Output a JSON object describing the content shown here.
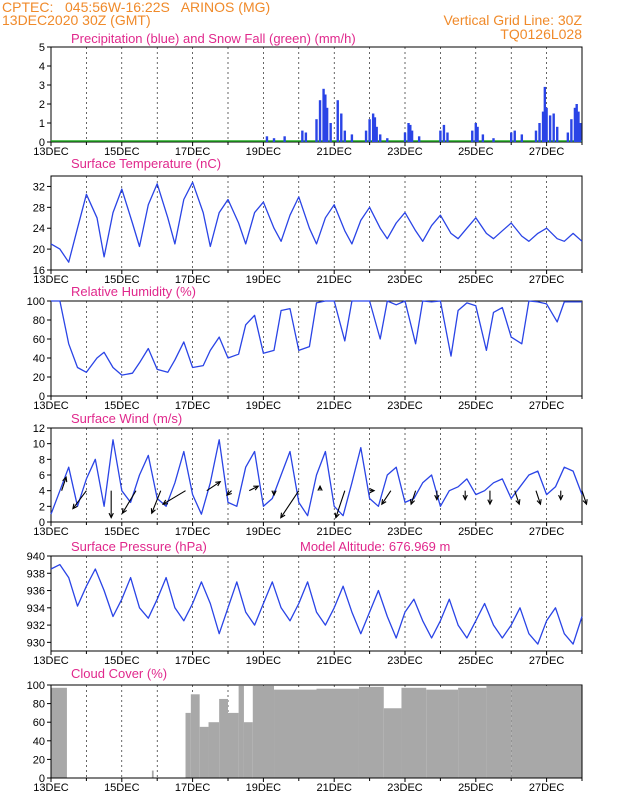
{
  "header": {
    "line1_left": "CPTEC:   045:56W-16:22S   ARINOS (MG)",
    "line2_left": "13DEC2020 30Z (GMT)",
    "line1_right": "Vertical Grid Line: 30Z",
    "line2_right": "TQ0126L028"
  },
  "colors": {
    "header": "#f08a2a",
    "panel_title": "#e0288c",
    "line": "#2a44e6",
    "cloud": "#a8a8a8",
    "snow": "#22aa22",
    "arrow": "#000000"
  },
  "x_ticks": [
    "13DEC",
    "15DEC",
    "17DEC",
    "19DEC",
    "21DEC",
    "23DEC",
    "25DEC",
    "27DEC"
  ],
  "chart_data": [
    {
      "id": "precip",
      "type": "bar",
      "title": "Precipitation (blue) and Snow Fall (green) (mm/h)",
      "ylim": [
        0,
        5
      ],
      "yticks": [
        "0",
        "1",
        "2",
        "3",
        "4",
        "5"
      ],
      "x_start_day": 13,
      "x_end_day": 28,
      "series": [
        {
          "name": "Precipitation",
          "color": "#2a44e6",
          "points": [
            [
              19.1,
              0.3
            ],
            [
              19.3,
              0.2
            ],
            [
              19.6,
              0.3
            ],
            [
              20.1,
              0.6
            ],
            [
              20.2,
              0.5
            ],
            [
              20.5,
              1.2
            ],
            [
              20.6,
              2.2
            ],
            [
              20.7,
              2.8
            ],
            [
              20.75,
              2.5
            ],
            [
              20.8,
              1.8
            ],
            [
              20.9,
              1.0
            ],
            [
              21.1,
              2.2
            ],
            [
              21.2,
              1.5
            ],
            [
              21.3,
              0.6
            ],
            [
              21.5,
              0.4
            ],
            [
              21.9,
              0.6
            ],
            [
              22.0,
              1.2
            ],
            [
              22.1,
              1.5
            ],
            [
              22.15,
              1.3
            ],
            [
              22.2,
              0.8
            ],
            [
              22.3,
              0.4
            ],
            [
              22.5,
              0.2
            ],
            [
              23.0,
              0.5
            ],
            [
              23.1,
              1.0
            ],
            [
              23.15,
              0.9
            ],
            [
              23.2,
              0.6
            ],
            [
              23.4,
              0.3
            ],
            [
              24.0,
              0.6
            ],
            [
              24.1,
              0.9
            ],
            [
              24.2,
              0.5
            ],
            [
              24.9,
              0.6
            ],
            [
              25.0,
              1.0
            ],
            [
              25.05,
              0.8
            ],
            [
              25.2,
              0.4
            ],
            [
              25.5,
              0.2
            ],
            [
              26.0,
              0.5
            ],
            [
              26.1,
              0.6
            ],
            [
              26.3,
              0.4
            ],
            [
              26.7,
              0.6
            ],
            [
              26.8,
              1.0
            ],
            [
              26.9,
              1.6
            ],
            [
              26.95,
              2.9
            ],
            [
              27.0,
              1.8
            ],
            [
              27.1,
              1.4
            ],
            [
              27.2,
              1.5
            ],
            [
              27.3,
              0.8
            ],
            [
              27.6,
              0.5
            ],
            [
              27.7,
              1.2
            ],
            [
              27.8,
              1.8
            ],
            [
              27.85,
              2.0
            ],
            [
              27.9,
              1.6
            ],
            [
              27.95,
              1.0
            ]
          ]
        },
        {
          "name": "Snow Fall",
          "color": "#22aa22",
          "points": []
        }
      ]
    },
    {
      "id": "temp",
      "type": "line",
      "title": "Surface Temperature (nC)",
      "ylim": [
        16,
        34
      ],
      "yticks": [
        "16",
        "20",
        "24",
        "28",
        "32"
      ],
      "x": [
        13.0,
        13.25,
        13.5,
        13.75,
        14.0,
        14.3,
        14.5,
        14.75,
        15.0,
        15.3,
        15.5,
        15.75,
        16.0,
        16.3,
        16.5,
        16.75,
        17.0,
        17.3,
        17.5,
        17.75,
        18.0,
        18.3,
        18.5,
        18.75,
        19.0,
        19.3,
        19.5,
        19.75,
        20.0,
        20.3,
        20.5,
        20.75,
        21.0,
        21.3,
        21.5,
        21.75,
        22.0,
        22.3,
        22.5,
        22.75,
        23.0,
        23.3,
        23.5,
        23.75,
        24.0,
        24.3,
        24.5,
        24.75,
        25.0,
        25.3,
        25.5,
        25.75,
        26.0,
        26.3,
        26.5,
        26.75,
        27.0,
        27.3,
        27.5,
        27.75,
        28.0
      ],
      "values": [
        21.0,
        20.0,
        17.5,
        24.0,
        30.5,
        26.0,
        18.5,
        27.0,
        31.5,
        25.0,
        20.5,
        28.5,
        32.5,
        26.0,
        21.0,
        29.5,
        32.8,
        27.0,
        20.5,
        27.0,
        29.5,
        25.0,
        21.0,
        27.0,
        29.0,
        24.0,
        21.5,
        26.5,
        30.0,
        24.0,
        21.0,
        26.0,
        28.5,
        23.5,
        21.0,
        25.5,
        28.0,
        24.0,
        22.0,
        25.0,
        27.0,
        23.5,
        21.5,
        24.5,
        26.5,
        23.0,
        22.0,
        24.0,
        26.0,
        23.0,
        22.0,
        23.5,
        25.0,
        22.5,
        21.5,
        23.0,
        24.0,
        22.0,
        21.5,
        23.0,
        21.5
      ]
    },
    {
      "id": "rh",
      "type": "line",
      "title": "Relative Humidity (%)",
      "ylim": [
        0,
        100
      ],
      "yticks": [
        "0",
        "20",
        "40",
        "60",
        "80",
        "100"
      ],
      "x": [
        13.0,
        13.25,
        13.5,
        13.75,
        14.0,
        14.3,
        14.5,
        14.75,
        15.0,
        15.3,
        15.5,
        15.75,
        16.0,
        16.3,
        16.5,
        16.75,
        17.0,
        17.3,
        17.5,
        17.75,
        18.0,
        18.3,
        18.5,
        18.75,
        19.0,
        19.3,
        19.5,
        19.75,
        20.0,
        20.3,
        20.5,
        20.75,
        21.0,
        21.3,
        21.5,
        21.75,
        22.0,
        22.3,
        22.5,
        22.75,
        23.0,
        23.3,
        23.5,
        23.75,
        24.0,
        24.3,
        24.5,
        24.75,
        25.0,
        25.3,
        25.5,
        25.75,
        26.0,
        26.3,
        26.5,
        26.75,
        27.0,
        27.3,
        27.5,
        27.75,
        28.0
      ],
      "values": [
        100,
        100,
        55,
        30,
        25,
        40,
        46,
        30,
        22,
        24,
        35,
        50,
        28,
        25,
        38,
        57,
        30,
        32,
        48,
        62,
        40,
        44,
        75,
        85,
        45,
        48,
        90,
        92,
        48,
        52,
        98,
        100,
        100,
        58,
        100,
        100,
        100,
        60,
        100,
        96,
        100,
        55,
        100,
        99,
        100,
        42,
        90,
        98,
        95,
        48,
        88,
        93,
        62,
        55,
        100,
        99,
        97,
        78,
        99,
        99,
        99
      ]
    },
    {
      "id": "wind",
      "type": "line",
      "title": "Surface Wind (m/s)",
      "ylim": [
        0,
        12
      ],
      "yticks": [
        "0",
        "2",
        "4",
        "6",
        "8",
        "10",
        "12"
      ],
      "x": [
        13.0,
        13.25,
        13.5,
        13.75,
        14.0,
        14.25,
        14.5,
        14.75,
        15.0,
        15.25,
        15.5,
        15.75,
        16.0,
        16.25,
        16.5,
        16.75,
        17.0,
        17.25,
        17.5,
        17.75,
        18.0,
        18.25,
        18.5,
        18.75,
        19.0,
        19.25,
        19.5,
        19.75,
        20.0,
        20.25,
        20.5,
        20.75,
        21.0,
        21.25,
        21.5,
        21.75,
        22.0,
        22.25,
        22.5,
        22.75,
        23.0,
        23.25,
        23.5,
        23.75,
        24.0,
        24.25,
        24.5,
        24.75,
        25.0,
        25.25,
        25.5,
        25.75,
        26.0,
        26.25,
        26.5,
        26.75,
        27.0,
        27.25,
        27.5,
        27.75,
        28.0
      ],
      "values": [
        1.0,
        4.0,
        7.0,
        2.0,
        5.5,
        8.0,
        2.0,
        10.5,
        4.0,
        2.5,
        6.0,
        8.5,
        3.0,
        2.0,
        5.0,
        9.0,
        3.5,
        1.0,
        5.0,
        10.5,
        2.5,
        2.0,
        7.0,
        9.0,
        2.0,
        3.0,
        6.0,
        9.0,
        2.5,
        0.8,
        6.0,
        9.0,
        2.0,
        0.8,
        5.0,
        9.5,
        3.0,
        2.0,
        6.0,
        7.0,
        2.5,
        3.0,
        5.0,
        6.0,
        2.0,
        4.0,
        4.5,
        5.5,
        3.5,
        4.0,
        5.0,
        5.5,
        3.0,
        4.5,
        6.0,
        6.5,
        3.5,
        4.5,
        7.0,
        6.5,
        3.5
      ],
      "arrows": [
        [
          13.3,
          1,
          3
        ],
        [
          14.0,
          -3,
          -4
        ],
        [
          14.7,
          0,
          -6
        ],
        [
          15.4,
          -3,
          -5
        ],
        [
          16.1,
          -2,
          -5
        ],
        [
          16.8,
          -5,
          -3
        ],
        [
          17.4,
          3,
          2
        ],
        [
          18.1,
          -1,
          -1
        ],
        [
          18.6,
          2,
          1
        ],
        [
          19.3,
          0,
          -1
        ],
        [
          20.0,
          -4,
          -6
        ],
        [
          20.6,
          0,
          1
        ],
        [
          21.3,
          -2,
          -6
        ],
        [
          22.0,
          1,
          0
        ],
        [
          22.6,
          -2,
          -3
        ],
        [
          23.3,
          -1,
          -3
        ],
        [
          23.9,
          0,
          -2
        ],
        [
          24.7,
          0,
          -2
        ],
        [
          25.4,
          0,
          -3
        ],
        [
          26.1,
          1,
          -3
        ],
        [
          26.7,
          1,
          -3
        ],
        [
          27.4,
          0,
          -2
        ],
        [
          28.0,
          1,
          -3
        ]
      ]
    },
    {
      "id": "pres",
      "type": "line",
      "title": "Surface Pressure (hPa)",
      "subtitle": "Model Altitude: 676.969  m",
      "ylim": [
        929,
        940
      ],
      "yticks": [
        "930",
        "932",
        "934",
        "936",
        "938",
        "940"
      ],
      "x": [
        13.0,
        13.25,
        13.5,
        13.75,
        14.0,
        14.25,
        14.5,
        14.75,
        15.0,
        15.25,
        15.5,
        15.75,
        16.0,
        16.25,
        16.5,
        16.75,
        17.0,
        17.25,
        17.5,
        17.75,
        18.0,
        18.25,
        18.5,
        18.75,
        19.0,
        19.25,
        19.5,
        19.75,
        20.0,
        20.25,
        20.5,
        20.75,
        21.0,
        21.25,
        21.5,
        21.75,
        22.0,
        22.25,
        22.5,
        22.75,
        23.0,
        23.25,
        23.5,
        23.75,
        24.0,
        24.25,
        24.5,
        24.75,
        25.0,
        25.25,
        25.5,
        25.75,
        26.0,
        26.25,
        26.5,
        26.75,
        27.0,
        27.25,
        27.5,
        27.75,
        28.0
      ],
      "values": [
        938.5,
        939.0,
        937.5,
        934.2,
        936.5,
        938.5,
        936.0,
        933.0,
        935.0,
        937.5,
        934.0,
        932.8,
        935.0,
        937.5,
        934.0,
        932.5,
        934.5,
        937.0,
        934.5,
        931.0,
        934.0,
        937.0,
        933.5,
        932.0,
        934.5,
        937.0,
        934.0,
        932.5,
        934.5,
        937.0,
        933.5,
        932.0,
        934.0,
        936.5,
        933.5,
        931.0,
        933.5,
        936.0,
        933.0,
        930.5,
        933.5,
        935.0,
        932.5,
        930.5,
        932.5,
        935.0,
        932.0,
        930.5,
        932.5,
        934.5,
        932.0,
        930.5,
        932.0,
        934.0,
        931.0,
        929.8,
        932.5,
        934.0,
        931.0,
        929.8,
        933.0
      ]
    },
    {
      "id": "cloud",
      "type": "area",
      "title": "Cloud Cover (%)",
      "ylim": [
        0,
        100
      ],
      "yticks": [
        "0",
        "20",
        "40",
        "60",
        "80",
        "100"
      ],
      "segments": [
        {
          "from": 13.0,
          "to": 13.45,
          "value": 97
        },
        {
          "from": 15.85,
          "to": 15.9,
          "value": 8
        },
        {
          "from": 16.8,
          "to": 16.95,
          "value": 70
        },
        {
          "from": 16.95,
          "to": 17.2,
          "value": 90
        },
        {
          "from": 17.2,
          "to": 17.45,
          "value": 55
        },
        {
          "from": 17.45,
          "to": 17.75,
          "value": 60
        },
        {
          "from": 17.75,
          "to": 18.0,
          "value": 85
        },
        {
          "from": 18.0,
          "to": 18.3,
          "value": 70
        },
        {
          "from": 18.3,
          "to": 18.45,
          "value": 99
        },
        {
          "from": 18.45,
          "to": 18.7,
          "value": 60
        },
        {
          "from": 18.7,
          "to": 19.3,
          "value": 99
        },
        {
          "from": 19.3,
          "to": 20.5,
          "value": 95
        },
        {
          "from": 20.5,
          "to": 21.7,
          "value": 96
        },
        {
          "from": 21.7,
          "to": 22.4,
          "value": 98
        },
        {
          "from": 22.4,
          "to": 22.9,
          "value": 75
        },
        {
          "from": 22.9,
          "to": 23.6,
          "value": 97
        },
        {
          "from": 23.6,
          "to": 24.5,
          "value": 95
        },
        {
          "from": 24.5,
          "to": 25.3,
          "value": 97
        },
        {
          "from": 25.3,
          "to": 26.0,
          "value": 99
        },
        {
          "from": 26.0,
          "to": 28.0,
          "value": 99
        }
      ]
    }
  ]
}
